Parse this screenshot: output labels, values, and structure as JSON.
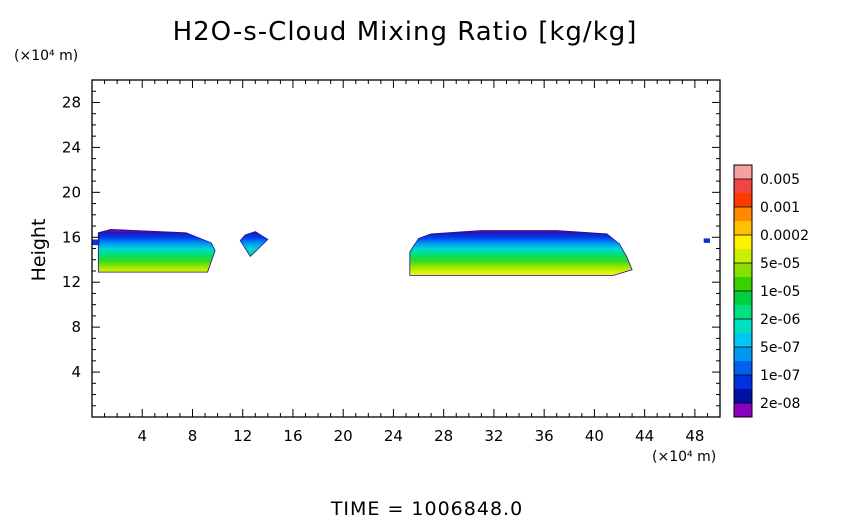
{
  "chart_data": {
    "type": "heatmap",
    "title": "H2O-s-Cloud Mixing Ratio [kg/kg]",
    "ylabel": "Height",
    "xlabel": "",
    "x_unit_label": "(×10⁴ m)",
    "y_unit_label": "(×10⁴ m)",
    "xlim": [
      0,
      50
    ],
    "ylim": [
      0,
      30
    ],
    "x_ticks": [
      4,
      8,
      12,
      16,
      20,
      24,
      28,
      32,
      36,
      40,
      44,
      48
    ],
    "y_ticks": [
      4,
      8,
      12,
      16,
      20,
      24,
      28
    ],
    "grid": false,
    "legend_position": "right",
    "colorbar": {
      "labels": [
        "0.005",
        "0.001",
        "0.0002",
        "5e-05",
        "1e-05",
        "2e-06",
        "5e-07",
        "1e-07",
        "2e-08"
      ],
      "colors": [
        "#f7a0a0",
        "#f04545",
        "#ff3a00",
        "#ff8800",
        "#ffc000",
        "#fff000",
        "#c8f000",
        "#88e000",
        "#3ad000",
        "#00d040",
        "#00e080",
        "#00e0c0",
        "#00c8f0",
        "#0098f0",
        "#0060f0",
        "#0030e0",
        "#0010a0",
        "#8800c0"
      ]
    },
    "regions": [
      {
        "name": "cloud-west",
        "x_range": [
          0.5,
          9.8
        ],
        "bottom": [
          [
            0.5,
            12.9
          ],
          [
            9.2,
            12.9
          ],
          [
            9.8,
            14.8
          ]
        ],
        "top": [
          [
            0.5,
            16.4
          ],
          [
            1.5,
            16.7
          ],
          [
            7.5,
            16.4
          ],
          [
            9.5,
            15.5
          ],
          [
            9.8,
            14.8
          ]
        ]
      },
      {
        "name": "cloud-small",
        "x_range": [
          11.8,
          14.0
        ],
        "bottom": [
          [
            11.8,
            15.7
          ],
          [
            12.6,
            14.3
          ],
          [
            14.0,
            15.8
          ]
        ],
        "top": [
          [
            11.8,
            15.7
          ],
          [
            12.2,
            16.2
          ],
          [
            13.0,
            16.5
          ],
          [
            14.0,
            15.8
          ]
        ]
      },
      {
        "name": "cloud-east",
        "x_range": [
          25.3,
          43.0
        ],
        "bottom": [
          [
            25.3,
            12.6
          ],
          [
            41.5,
            12.6
          ],
          [
            43.0,
            13.1
          ]
        ],
        "top": [
          [
            25.3,
            14.7
          ],
          [
            26.0,
            15.9
          ],
          [
            27.0,
            16.3
          ],
          [
            31.0,
            16.6
          ],
          [
            37.0,
            16.6
          ],
          [
            41.0,
            16.3
          ],
          [
            42.0,
            15.4
          ],
          [
            42.6,
            14.2
          ],
          [
            43.0,
            13.1
          ]
        ]
      },
      {
        "name": "fleck-left",
        "x_range": [
          0.0,
          0.6
        ],
        "bottom": [
          [
            0.0,
            15.3
          ],
          [
            0.6,
            15.3
          ]
        ],
        "top": [
          [
            0.0,
            15.8
          ],
          [
            0.6,
            15.8
          ]
        ]
      },
      {
        "name": "fleck-right",
        "x_range": [
          48.7,
          49.2
        ],
        "bottom": [
          [
            48.7,
            15.5
          ],
          [
            49.2,
            15.5
          ]
        ],
        "top": [
          [
            48.7,
            15.9
          ],
          [
            49.2,
            15.9
          ]
        ]
      }
    ]
  },
  "footer": {
    "time_label": "TIME = 1006848.0"
  }
}
